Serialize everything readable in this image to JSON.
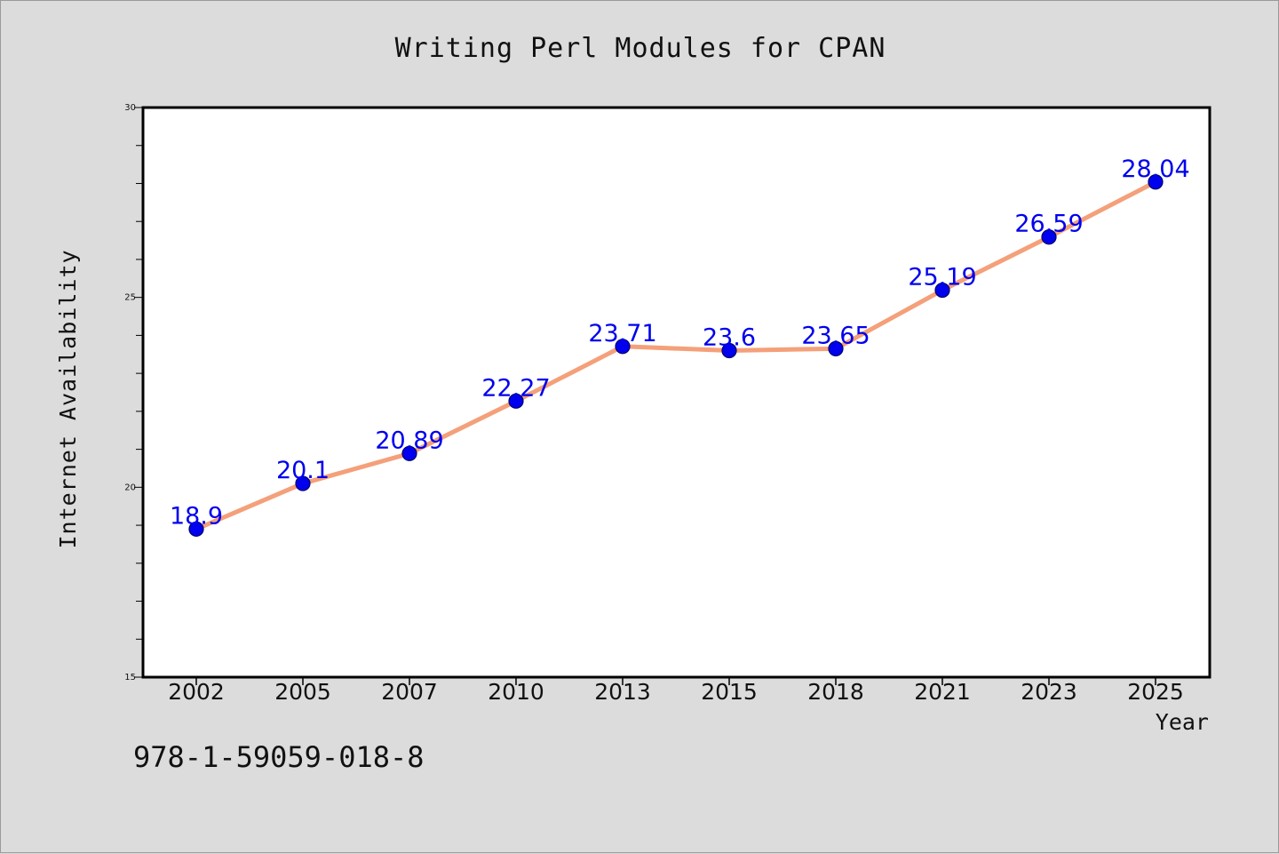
{
  "colors": {
    "background": "#dcdcdc",
    "plot_background": "#ffffff",
    "line": "#f4a07a",
    "marker": "#0000ee",
    "data_label": "#0000ee",
    "text": "#111111"
  },
  "chart_data": {
    "type": "line",
    "title": "Writing Perl Modules for CPAN",
    "xlabel": "Year",
    "ylabel": "Internet Availability",
    "categories": [
      "2002",
      "2005",
      "2007",
      "2010",
      "2013",
      "2015",
      "2018",
      "2021",
      "2023",
      "2025"
    ],
    "series": [
      {
        "values": [
          18.9,
          20.1,
          20.89,
          22.27,
          23.71,
          23.6,
          23.65,
          25.19,
          26.59,
          28.04
        ]
      }
    ],
    "ylim": [
      15,
      30
    ],
    "yticks": [
      "15",
      "20",
      "25",
      "30"
    ],
    "y_minor_step": 1,
    "grid": false,
    "legend": "none"
  },
  "footer": {
    "isbn": "978-1-59059-018-8"
  }
}
